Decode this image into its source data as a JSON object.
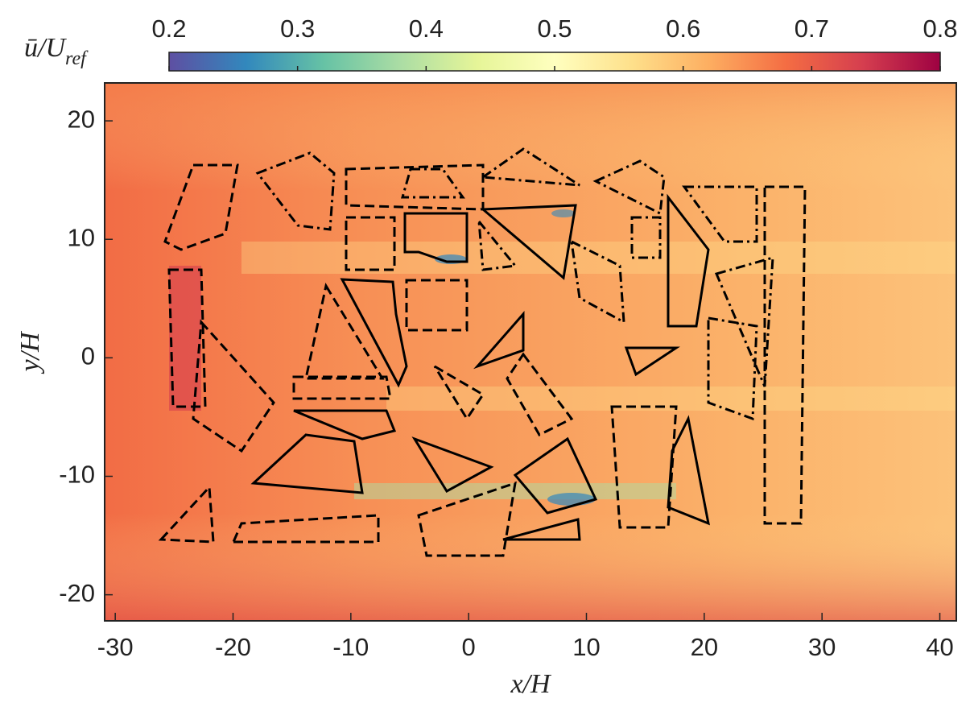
{
  "chart_data": {
    "type": "heatmap",
    "xlabel": "x/H",
    "ylabel": "y/H",
    "colorbar_label": {
      "main": "ū/U",
      "sub": "ref"
    },
    "xlim": [
      -30.9,
      41.4
    ],
    "xticks": [
      -30,
      -20,
      -10,
      0,
      10,
      20,
      30,
      40
    ],
    "ylim": [
      -22.2,
      23.2
    ],
    "yticks": [
      -20,
      -10,
      0,
      10,
      20
    ],
    "clim": [
      0.2,
      0.8
    ],
    "cticks": [
      0.2,
      0.3,
      0.4,
      0.5,
      0.6,
      0.7,
      0.8
    ],
    "colormap": [
      "#5e4fa2",
      "#3288bd",
      "#66c2a5",
      "#abdda4",
      "#e6f598",
      "#ffffbf",
      "#fee08b",
      "#fdae61",
      "#f46d43",
      "#d53e4f",
      "#9e0142"
    ]
  }
}
